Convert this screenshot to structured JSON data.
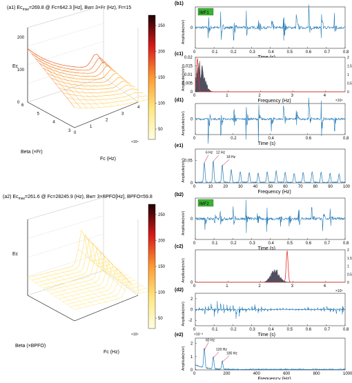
{
  "chart_data": [
    {
      "id": "a1",
      "type": "surface3d",
      "title": "(a1) Ec",
      "title_sub": "max",
      "title_rest": "=269.8 @  Fc=642.3 [Hz], Bw= 3×Fr (Hz), Fr=15",
      "xlabel": "Fc (Hz)",
      "ylabel": "Beta (×Fr)",
      "zlabel": "Ec",
      "x_multiplier": "×10⁴",
      "x_ticks": [
        "0",
        "1",
        "2",
        "3",
        "4"
      ],
      "y_ticks": [
        "3",
        "4",
        "5",
        "6"
      ],
      "z_ticks": [
        "0",
        "100",
        "200"
      ],
      "colorbar_ticks": [
        "50",
        "100",
        "150",
        "200",
        "250"
      ],
      "colorbar_range": [
        30,
        270
      ],
      "peak": {
        "Ec": 269.8,
        "Fc": 642.3
      }
    },
    {
      "id": "a2",
      "type": "surface3d",
      "title": "(a2) Ec",
      "title_sub": "max",
      "title_rest": "=261.6 @ Fc=28245.9 (Hz), Bw= 3×BPFO[Hz], BPFO=59.8",
      "xlabel": "Fc (Hz)",
      "ylabel": "Beta (×BPFO)",
      "zlabel": "Ec",
      "x_multiplier": "×10⁴",
      "colorbar_ticks": [
        "50",
        "100",
        "150",
        "200",
        "250"
      ],
      "colorbar_range": [
        30,
        270
      ],
      "peak": {
        "Ec": 261.6,
        "Fc": 28245.9
      }
    },
    {
      "id": "b1",
      "type": "line",
      "panel_label": "(b1)",
      "badge": "IMF1",
      "xlabel": "Time (s)",
      "ylabel": "Amplitude(m/s²)",
      "x_ticks": [
        "0",
        "0.1",
        "0.2",
        "0.3",
        "0.4",
        "0.5",
        "0.6",
        "0.7",
        "0.8"
      ],
      "y_ticks": [
        "0"
      ],
      "xlim": [
        0,
        0.8
      ],
      "impulse_times": [
        0.068,
        0.135,
        0.202,
        0.27,
        0.336,
        0.404,
        0.47,
        0.538,
        0.605,
        0.672,
        0.74
      ]
    },
    {
      "id": "c1",
      "type": "area",
      "panel_label": "(c1)",
      "xlabel": "Frequency (Hz)",
      "ylabel": "Amplitude(m/s²)",
      "x_ticks": [
        "0",
        "1",
        "2",
        "3",
        "4"
      ],
      "x_multiplier": "×10⁴",
      "y_ticks": [
        "0",
        "0.005",
        "0.01",
        "0.015",
        "0.02"
      ],
      "y2_ticks": [
        "0",
        "0.5",
        "1",
        "1.5",
        "2"
      ],
      "xlim": [
        0,
        4.6
      ],
      "ylim": [
        0,
        0.02
      ],
      "y2lim": [
        0,
        2
      ],
      "spectrum_center": 0.15,
      "spectrum_peak": 0.018,
      "filter_center": 0.064
    },
    {
      "id": "d1",
      "type": "line",
      "panel_label": "(d1)",
      "xlabel": "Time (s)",
      "ylabel": "Amplitude(m/s²)",
      "x_ticks": [
        "0",
        "0.2",
        "0.4",
        "0.6",
        "0.8"
      ],
      "y_ticks": [
        "0"
      ],
      "xlim": [
        0,
        0.8
      ],
      "impulse_times": [
        0.068,
        0.135,
        0.202,
        0.27,
        0.336,
        0.404,
        0.47,
        0.538,
        0.605,
        0.672,
        0.74
      ]
    },
    {
      "id": "e1",
      "type": "line",
      "panel_label": "(e1)",
      "xlabel": "Frequency (Hz)",
      "ylabel": "Amplitude(m/s²)",
      "x_ticks": [
        "0",
        "10",
        "20",
        "30",
        "40",
        "50",
        "60",
        "70",
        "80",
        "90",
        "100"
      ],
      "y_ticks": [
        "0",
        "0.05"
      ],
      "xlim": [
        0,
        100
      ],
      "ylim": [
        0,
        0.075
      ],
      "peaks_x": [
        6,
        12,
        18,
        24,
        30,
        36,
        42,
        48,
        54,
        60,
        66,
        72,
        78,
        84,
        90,
        96
      ],
      "peaks_y": [
        0.045,
        0.048,
        0.038,
        0.028,
        0.024,
        0.022,
        0.02,
        0.024,
        0.026,
        0.022,
        0.02,
        0.022,
        0.024,
        0.022,
        0.02,
        0.018
      ],
      "annotations": [
        {
          "x": 6,
          "text": "6 Hz"
        },
        {
          "x": 12,
          "text": "12 Hz"
        },
        {
          "x": 18,
          "text": "18 Hz"
        }
      ]
    },
    {
      "id": "b2",
      "type": "line",
      "panel_label": "(b2)",
      "badge": "IMF2",
      "xlabel": "Time (s)",
      "ylabel": "Amplitude(m/s²)",
      "x_ticks": [
        "0",
        "0.1",
        "0.2",
        "0.3",
        "0.4",
        "0.5",
        "0.6",
        "0.7",
        "0.8"
      ],
      "y_ticks": [
        "0"
      ],
      "xlim": [
        0,
        0.8
      ],
      "impulse_times": [
        0.05,
        0.1,
        0.13,
        0.2,
        0.27,
        0.33,
        0.38,
        0.45,
        0.5,
        0.55,
        0.62,
        0.68,
        0.72
      ]
    },
    {
      "id": "c2",
      "type": "area",
      "panel_label": "(c2)",
      "xlabel": "",
      "ylabel": "Amplitude(m/s²)",
      "x_ticks": [
        "0",
        "1",
        "2",
        "3",
        "4"
      ],
      "x_multiplier": "×10⁴",
      "y_ticks": [
        "0"
      ],
      "y2_ticks": [
        "0",
        "0.5",
        "1",
        "1.5",
        "2"
      ],
      "xlim": [
        0,
        4.6
      ],
      "ylim": [
        0,
        0.02
      ],
      "y2lim": [
        0,
        2
      ],
      "spectrum_center": 2.45,
      "spectrum_peak": 0.01,
      "filter_center": 2.82
    },
    {
      "id": "d2",
      "type": "line",
      "panel_label": "(d2)",
      "xlabel": "Time (s)",
      "ylabel": "Amplitude(m/s²)",
      "x_ticks": [
        "0",
        "0.1",
        "0.2",
        "0.3",
        "0.4",
        "0.5",
        "0.6",
        "0.7",
        "0.8"
      ],
      "y_ticks": [
        "-2",
        "0",
        "2"
      ],
      "xlim": [
        0,
        0.8
      ],
      "ylim": [
        -3,
        3
      ],
      "burst_period": 0.0167
    },
    {
      "id": "e2",
      "type": "line",
      "panel_label": "(e2)",
      "xlabel": "Frequency (Hz)",
      "ylabel": "Amplitude(m/s²)",
      "y_multiplier": "×10⁻³",
      "x_ticks": [
        "0",
        "200",
        "400",
        "600",
        "800",
        "1000"
      ],
      "y_ticks": [
        "0",
        "1",
        "2"
      ],
      "xlim": [
        0,
        1000
      ],
      "ylim": [
        0,
        2.4
      ],
      "peaks_x": [
        60,
        120,
        180
      ],
      "peaks_y": [
        1.5,
        0.9,
        0.6
      ],
      "annotations": [
        {
          "x": 60,
          "text": "60 Hz"
        },
        {
          "x": 120,
          "text": "120 Hz"
        },
        {
          "x": 180,
          "text": "180 Hz"
        }
      ]
    }
  ],
  "colors": {
    "signal": "#1f77b4",
    "filter": "#e8302a",
    "spectrum_fill": "#4f4f5f",
    "annotation": "#c0001a",
    "badge_bg": "#3cb034"
  }
}
